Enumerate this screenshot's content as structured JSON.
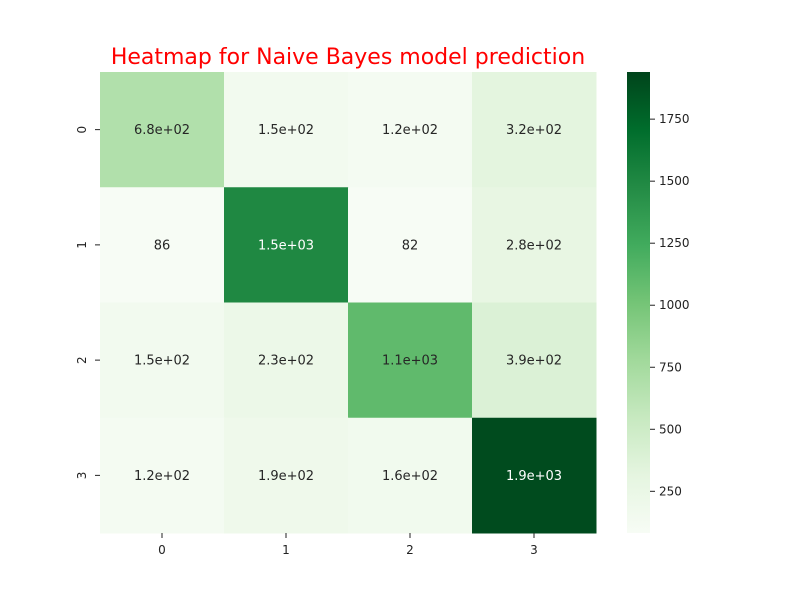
{
  "chart_data": {
    "type": "heatmap",
    "title": "Heatmap for Naive Bayes model prediction",
    "x_categories": [
      "0",
      "1",
      "2",
      "3"
    ],
    "y_categories": [
      "0",
      "1",
      "2",
      "3"
    ],
    "values": [
      [
        680,
        150,
        120,
        320
      ],
      [
        86,
        1500,
        82,
        280
      ],
      [
        150,
        230,
        1100,
        390
      ],
      [
        120,
        190,
        160,
        1900
      ]
    ],
    "annotations": [
      [
        "6.8e+02",
        "1.5e+02",
        "1.2e+02",
        "3.2e+02"
      ],
      [
        "86",
        "1.5e+03",
        "82",
        "2.8e+02"
      ],
      [
        "1.5e+02",
        "2.3e+02",
        "1.1e+03",
        "3.9e+02"
      ],
      [
        "1.2e+02",
        "1.9e+02",
        "1.6e+02",
        "1.9e+03"
      ]
    ],
    "colormap": "Greens",
    "color_range": [
      82,
      1940
    ],
    "colorbar_ticks": [
      "250",
      "500",
      "750",
      "1000",
      "1250",
      "1500",
      "1750"
    ],
    "colorbar_tick_values": [
      250,
      500,
      750,
      1000,
      1250,
      1500,
      1750
    ],
    "title_color": "#ff0000",
    "xlabel": "",
    "ylabel": "",
    "grid": false,
    "colorbar_position": "right"
  }
}
